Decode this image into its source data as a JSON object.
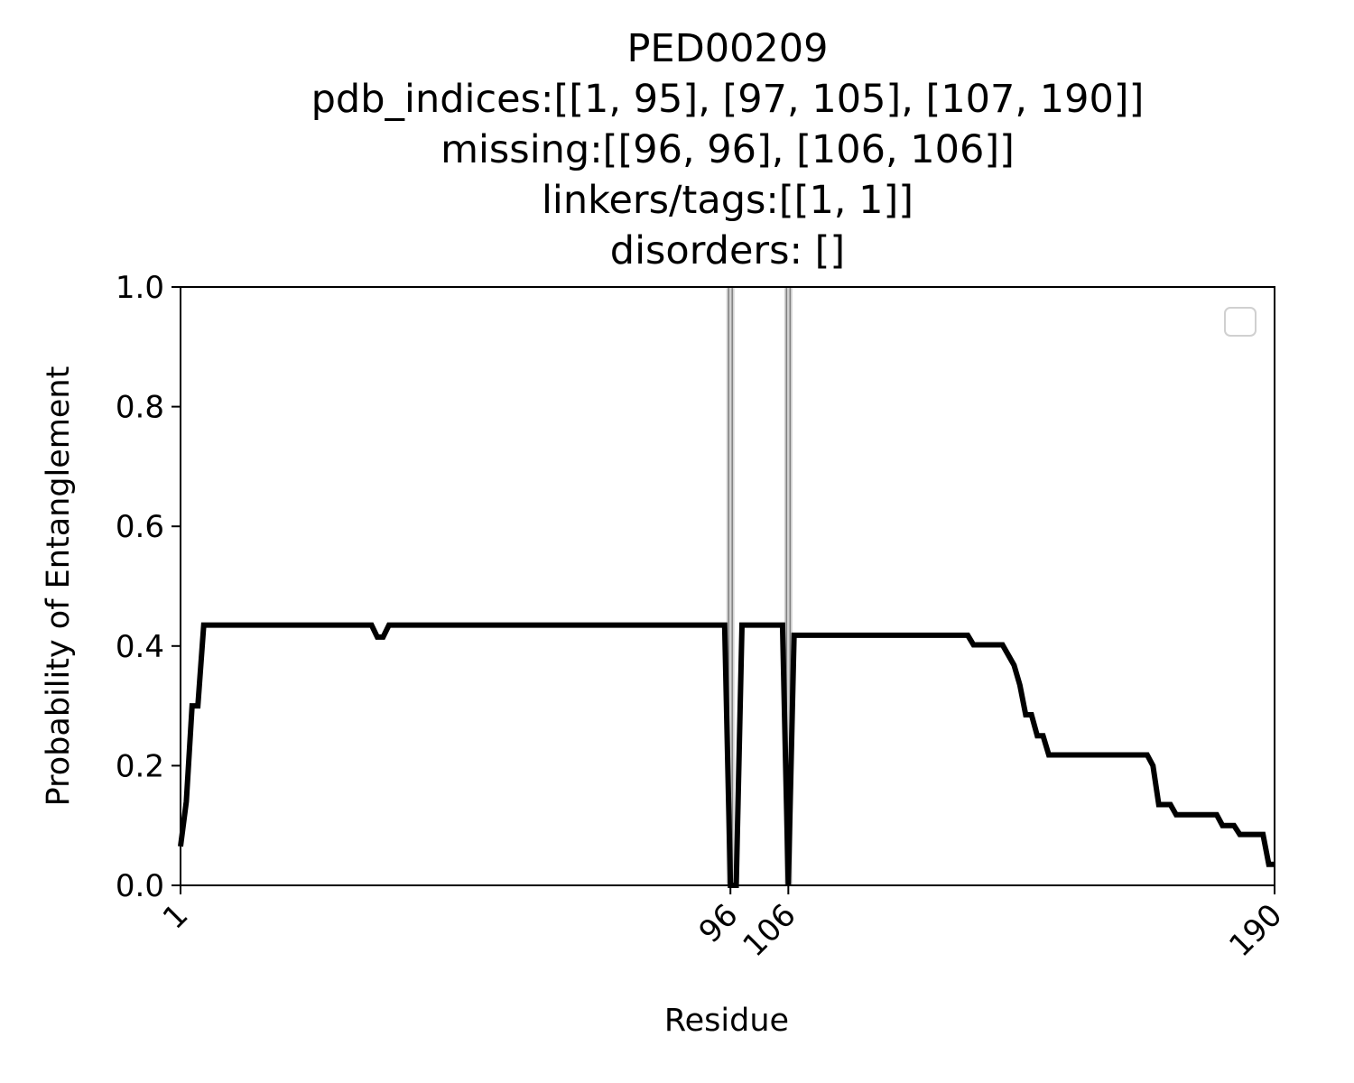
{
  "chart_data": {
    "type": "line",
    "title_lines": [
      "PED00209",
      "pdb_indices:[[1, 95], [97, 105], [107, 190]]",
      "missing:[[96, 96], [106, 106]]",
      "linkers/tags:[[1, 1]]",
      "disorders: []"
    ],
    "xlabel": "Residue",
    "ylabel": "Probability of Entanglement",
    "xlim": [
      1,
      190
    ],
    "ylim": [
      0,
      1.0
    ],
    "xticks": [
      1,
      96,
      106,
      190
    ],
    "xtick_labels": [
      "1",
      "96",
      "106",
      "190"
    ],
    "yticks": [
      0.0,
      0.2,
      0.4,
      0.6,
      0.8,
      1.0
    ],
    "ytick_labels": [
      "0.0",
      "0.2",
      "0.4",
      "0.6",
      "0.8",
      "1.0"
    ],
    "missing_residues": [
      96,
      106
    ],
    "legend": "top-right, empty",
    "grid": false,
    "colors": {
      "line": "#000000",
      "missing_band": "#808080"
    },
    "series": [
      {
        "x": [
          1,
          2,
          3,
          4,
          5,
          6,
          34,
          35,
          36,
          37,
          95,
          96,
          97,
          98,
          100,
          105,
          106,
          107,
          108,
          137,
          138,
          143,
          144,
          145,
          146,
          147,
          148,
          149,
          150,
          151,
          152,
          153,
          168,
          169,
          170,
          171,
          172,
          173,
          174,
          175,
          180,
          181,
          182,
          183,
          184,
          186,
          187,
          188,
          189,
          190
        ],
        "y": [
          0.065,
          0.14,
          0.3,
          0.3,
          0.435,
          0.435,
          0.435,
          0.415,
          0.415,
          0.435,
          0.435,
          0.0,
          0.0,
          0.435,
          0.435,
          0.435,
          0.0,
          0.418,
          0.418,
          0.418,
          0.402,
          0.402,
          0.385,
          0.368,
          0.335,
          0.285,
          0.285,
          0.25,
          0.25,
          0.218,
          0.218,
          0.218,
          0.218,
          0.2,
          0.135,
          0.135,
          0.135,
          0.118,
          0.118,
          0.118,
          0.118,
          0.1,
          0.1,
          0.1,
          0.085,
          0.085,
          0.085,
          0.085,
          0.035,
          0.035
        ]
      }
    ]
  }
}
